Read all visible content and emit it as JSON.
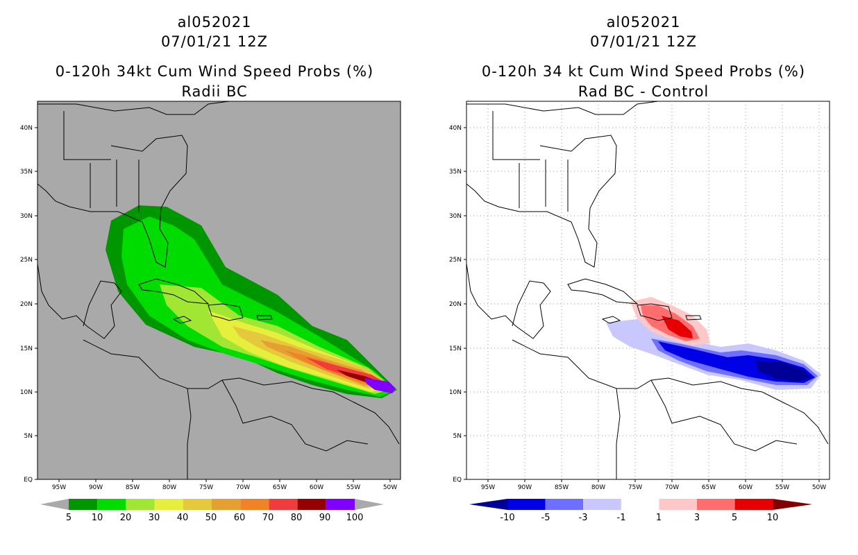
{
  "left": {
    "titles": [
      "al052021",
      "07/01/21 12Z",
      "0-120h 34kt Cum Wind Speed Probs (%)",
      "Radii BC"
    ],
    "lat_labels": [
      "40N",
      "35N",
      "30N",
      "25N",
      "20N",
      "15N",
      "10N",
      "5N",
      "EQ"
    ],
    "lon_labels": [
      "95W",
      "90W",
      "85W",
      "80W",
      "75W",
      "70W",
      "65W",
      "60W",
      "55W",
      "50W"
    ],
    "colorbar": {
      "labels": [
        "5",
        "10",
        "20",
        "30",
        "40",
        "50",
        "60",
        "70",
        "80",
        "90",
        "100"
      ],
      "colors": [
        "#009600",
        "#00dc00",
        "#a0e632",
        "#e6f03c",
        "#e6c83c",
        "#e6a032",
        "#f08228",
        "#f03c3c",
        "#960000",
        "#7f00ff"
      ]
    }
  },
  "right": {
    "titles": [
      "al052021",
      "07/01/21 12Z",
      "0-120h 34 kt Cum Wind Speed Probs (%)",
      "Rad BC - Control"
    ],
    "lat_labels": [
      "40N",
      "35N",
      "30N",
      "25N",
      "20N",
      "15N",
      "10N",
      "5N",
      "EQ"
    ],
    "lon_labels": [
      "95W",
      "90W",
      "85W",
      "80W",
      "75W",
      "70W",
      "65W",
      "60W",
      "55W",
      "50W"
    ],
    "colorbar": {
      "labels": [
        "-10",
        "-5",
        "-3",
        "-1",
        "1",
        "3",
        "5",
        "10"
      ],
      "colors": [
        "#000096",
        "#0000e6",
        "#6e6eff",
        "#c8c8ff",
        "#ffffff",
        "#ffc8c8",
        "#ff6e6e",
        "#e60000",
        "#820000"
      ]
    }
  }
}
